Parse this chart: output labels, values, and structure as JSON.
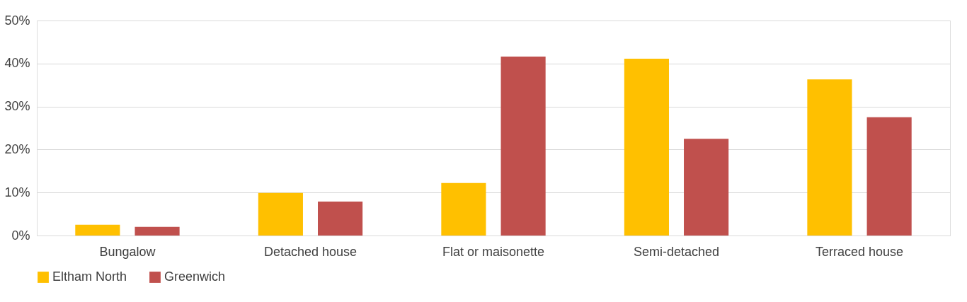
{
  "chart_data": {
    "type": "bar",
    "categories": [
      "Bungalow",
      "Detached house",
      "Flat or maisonette",
      "Semi-detached",
      "Terraced house"
    ],
    "series": [
      {
        "name": "Eltham North",
        "color": "#ffc000",
        "values": [
          2.5,
          9.9,
          12.2,
          41.1,
          36.3
        ]
      },
      {
        "name": "Greenwich",
        "color": "#c0504d",
        "values": [
          2.0,
          7.9,
          41.6,
          22.5,
          27.5
        ]
      }
    ],
    "ylim": [
      0,
      50
    ],
    "yticks": [
      {
        "value": 0,
        "label": "0%"
      },
      {
        "value": 10,
        "label": "10%"
      },
      {
        "value": 20,
        "label": "20%"
      },
      {
        "value": 30,
        "label": "30%"
      },
      {
        "value": 40,
        "label": "40%"
      },
      {
        "value": 50,
        "label": "50%"
      }
    ],
    "grid": "y",
    "legend": "bottom"
  }
}
